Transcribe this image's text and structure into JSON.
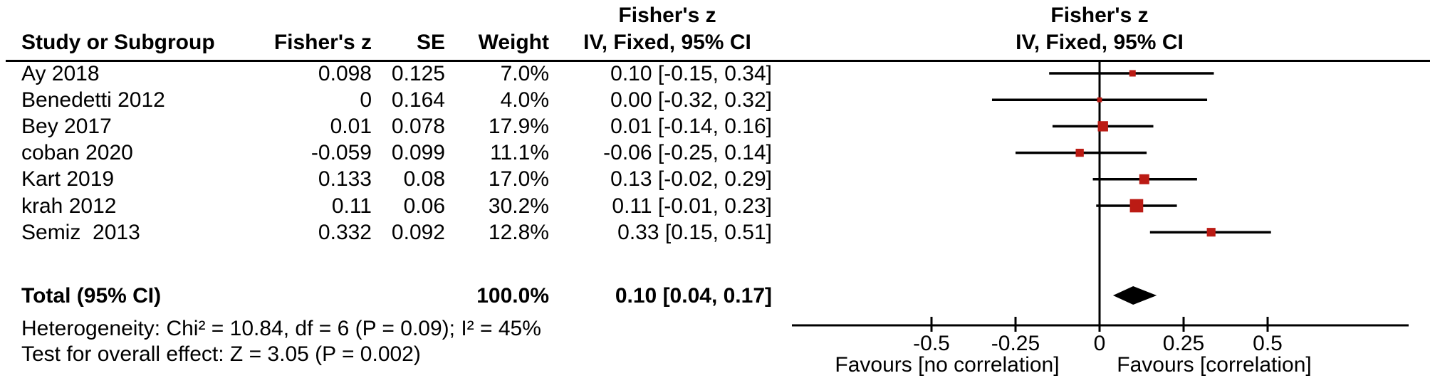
{
  "chart_data": {
    "type": "forest",
    "columns": {
      "study": "Study or Subgroup",
      "z": "Fisher's z",
      "se": "SE",
      "weight": "Weight",
      "ci": "IV, Fixed, 95% CI"
    },
    "effect_header_line1": "Fisher's z",
    "effect_header_line2": "IV, Fixed, 95% CI",
    "plot_header_line1": "Fisher's z",
    "plot_header_line2": "IV, Fixed, 95% CI",
    "studies": [
      {
        "name": "Ay 2018",
        "z": "0.098",
        "se": "0.125",
        "weight": "7.0%",
        "weight_value": 7.0,
        "ci_text": "0.10 [-0.15, 0.34]",
        "est": 0.098,
        "lo": -0.15,
        "hi": 0.34
      },
      {
        "name": "Benedetti 2012",
        "z": "0",
        "se": "0.164",
        "weight": "4.0%",
        "weight_value": 4.0,
        "ci_text": "0.00 [-0.32, 0.32]",
        "est": 0.0,
        "lo": -0.32,
        "hi": 0.32
      },
      {
        "name": "Bey 2017",
        "z": "0.01",
        "se": "0.078",
        "weight": "17.9%",
        "weight_value": 17.9,
        "ci_text": "0.01 [-0.14, 0.16]",
        "est": 0.01,
        "lo": -0.14,
        "hi": 0.16
      },
      {
        "name": "coban 2020",
        "z": "-0.059",
        "se": "0.099",
        "weight": "11.1%",
        "weight_value": 11.1,
        "ci_text": "-0.06 [-0.25, 0.14]",
        "est": -0.059,
        "lo": -0.25,
        "hi": 0.14
      },
      {
        "name": "Kart 2019",
        "z": "0.133",
        "se": "0.08",
        "weight": "17.0%",
        "weight_value": 17.0,
        "ci_text": "0.13 [-0.02, 0.29]",
        "est": 0.133,
        "lo": -0.02,
        "hi": 0.29
      },
      {
        "name": "krah 2012",
        "z": "0.11",
        "se": "0.06",
        "weight": "30.2%",
        "weight_value": 30.2,
        "ci_text": "0.11 [-0.01, 0.23]",
        "est": 0.11,
        "lo": -0.01,
        "hi": 0.23
      },
      {
        "name": "Semiz  2013",
        "z": "0.332",
        "se": "0.092",
        "weight": "12.8%",
        "weight_value": 12.8,
        "ci_text": "0.33 [0.15, 0.51]",
        "est": 0.332,
        "lo": 0.15,
        "hi": 0.51
      }
    ],
    "total": {
      "label": "Total (95% CI)",
      "weight": "100.0%",
      "ci_text": "0.10 [0.04, 0.17]",
      "est": 0.1,
      "lo": 0.04,
      "hi": 0.17
    },
    "heterogeneity": "Heterogeneity: Chi² = 10.84, df = 6 (P = 0.09); I² = 45%",
    "overall_effect": "Test for overall effect: Z = 3.05 (P = 0.002)",
    "axis": {
      "ticks": [
        -0.5,
        -0.25,
        0,
        0.25,
        0.5
      ],
      "tick_labels": [
        "-0.5",
        "-0.25",
        "0",
        "0.25",
        "0.5"
      ],
      "min": -0.92,
      "max": 0.92
    },
    "favours_left": "Favours [no correlation]",
    "favours_right": "Favours [correlation]",
    "colors": {
      "square": "#bb1b14",
      "diamond": "#000000",
      "line": "#000000"
    }
  }
}
